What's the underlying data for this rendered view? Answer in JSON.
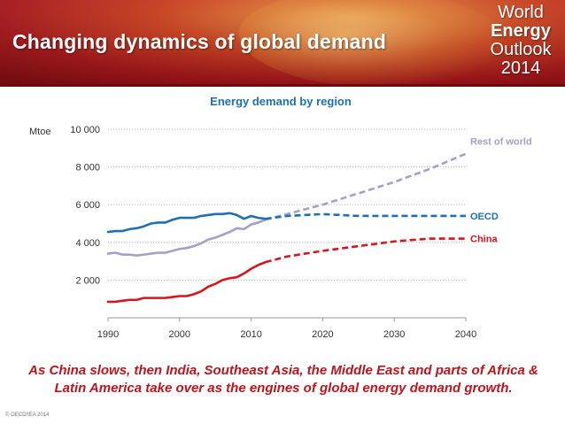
{
  "slide": {
    "title": "Changing dynamics of global demand",
    "logo_lines": [
      "World",
      "Energy",
      "Outlook",
      "2014"
    ],
    "footer": "As China slows, then India, Southeast Asia, the Middle East and parts of Africa & Latin America take over as the engines of global energy demand growth.",
    "copyright": "© OECD/IEA 2014",
    "colors": {
      "banner": "#a4161a",
      "title_text": "#ffffff",
      "footer_text": "#c0141c"
    }
  },
  "chart_data": {
    "type": "line",
    "title": "Energy demand by region",
    "ylabel": "Mtoe",
    "xlim": [
      1990,
      2040
    ],
    "ylim": [
      0,
      10000
    ],
    "y_ticks": [
      2000,
      4000,
      6000,
      8000,
      10000
    ],
    "y_tick_labels": [
      "2 000",
      "4 000",
      "6 000",
      "8 000",
      "10 000"
    ],
    "x_ticks": [
      1990,
      2000,
      2010,
      2020,
      2030,
      2040
    ],
    "x_tick_labels": [
      "1990",
      "2000",
      "2010",
      "2020",
      "2030",
      "2040"
    ],
    "grid": "horizontal dotted",
    "legend": "inline labels at right end",
    "series": [
      {
        "name": "Rest of world",
        "color": "#a6a0c8",
        "historical": {
          "x": [
            1990,
            1991,
            1992,
            1993,
            1994,
            1995,
            1996,
            1997,
            1998,
            1999,
            2000,
            2001,
            2002,
            2003,
            2004,
            2005,
            2006,
            2007,
            2008,
            2009,
            2010,
            2011,
            2012
          ],
          "y": [
            3400,
            3450,
            3350,
            3350,
            3300,
            3350,
            3400,
            3450,
            3450,
            3550,
            3650,
            3700,
            3800,
            3950,
            4150,
            4250,
            4400,
            4550,
            4750,
            4700,
            4950,
            5050,
            5200
          ]
        },
        "projection": {
          "x": [
            2012,
            2015,
            2020,
            2025,
            2030,
            2035,
            2040
          ],
          "y": [
            5200,
            5500,
            6000,
            6600,
            7200,
            7900,
            8700
          ]
        }
      },
      {
        "name": "OECD",
        "color": "#1f6fb5",
        "historical": {
          "x": [
            1990,
            1991,
            1992,
            1993,
            1994,
            1995,
            1996,
            1997,
            1998,
            1999,
            2000,
            2001,
            2002,
            2003,
            2004,
            2005,
            2006,
            2007,
            2008,
            2009,
            2010,
            2011,
            2012
          ],
          "y": [
            4550,
            4600,
            4600,
            4700,
            4750,
            4850,
            5000,
            5050,
            5050,
            5200,
            5300,
            5300,
            5300,
            5400,
            5450,
            5500,
            5500,
            5550,
            5450,
            5250,
            5400,
            5300,
            5250
          ]
        },
        "projection": {
          "x": [
            2012,
            2015,
            2020,
            2025,
            2030,
            2035,
            2040
          ],
          "y": [
            5250,
            5400,
            5500,
            5400,
            5400,
            5400,
            5400
          ]
        }
      },
      {
        "name": "China",
        "color": "#d8141c",
        "historical": {
          "x": [
            1990,
            1991,
            1992,
            1993,
            1994,
            1995,
            1996,
            1997,
            1998,
            1999,
            2000,
            2001,
            2002,
            2003,
            2004,
            2005,
            2006,
            2007,
            2008,
            2009,
            2010,
            2011,
            2012
          ],
          "y": [
            850,
            850,
            900,
            950,
            950,
            1050,
            1050,
            1050,
            1050,
            1100,
            1150,
            1150,
            1250,
            1400,
            1650,
            1800,
            2000,
            2100,
            2150,
            2350,
            2600,
            2800,
            2950
          ]
        },
        "projection": {
          "x": [
            2012,
            2015,
            2020,
            2025,
            2030,
            2035,
            2040
          ],
          "y": [
            2950,
            3250,
            3550,
            3800,
            4050,
            4200,
            4200
          ]
        }
      }
    ]
  }
}
